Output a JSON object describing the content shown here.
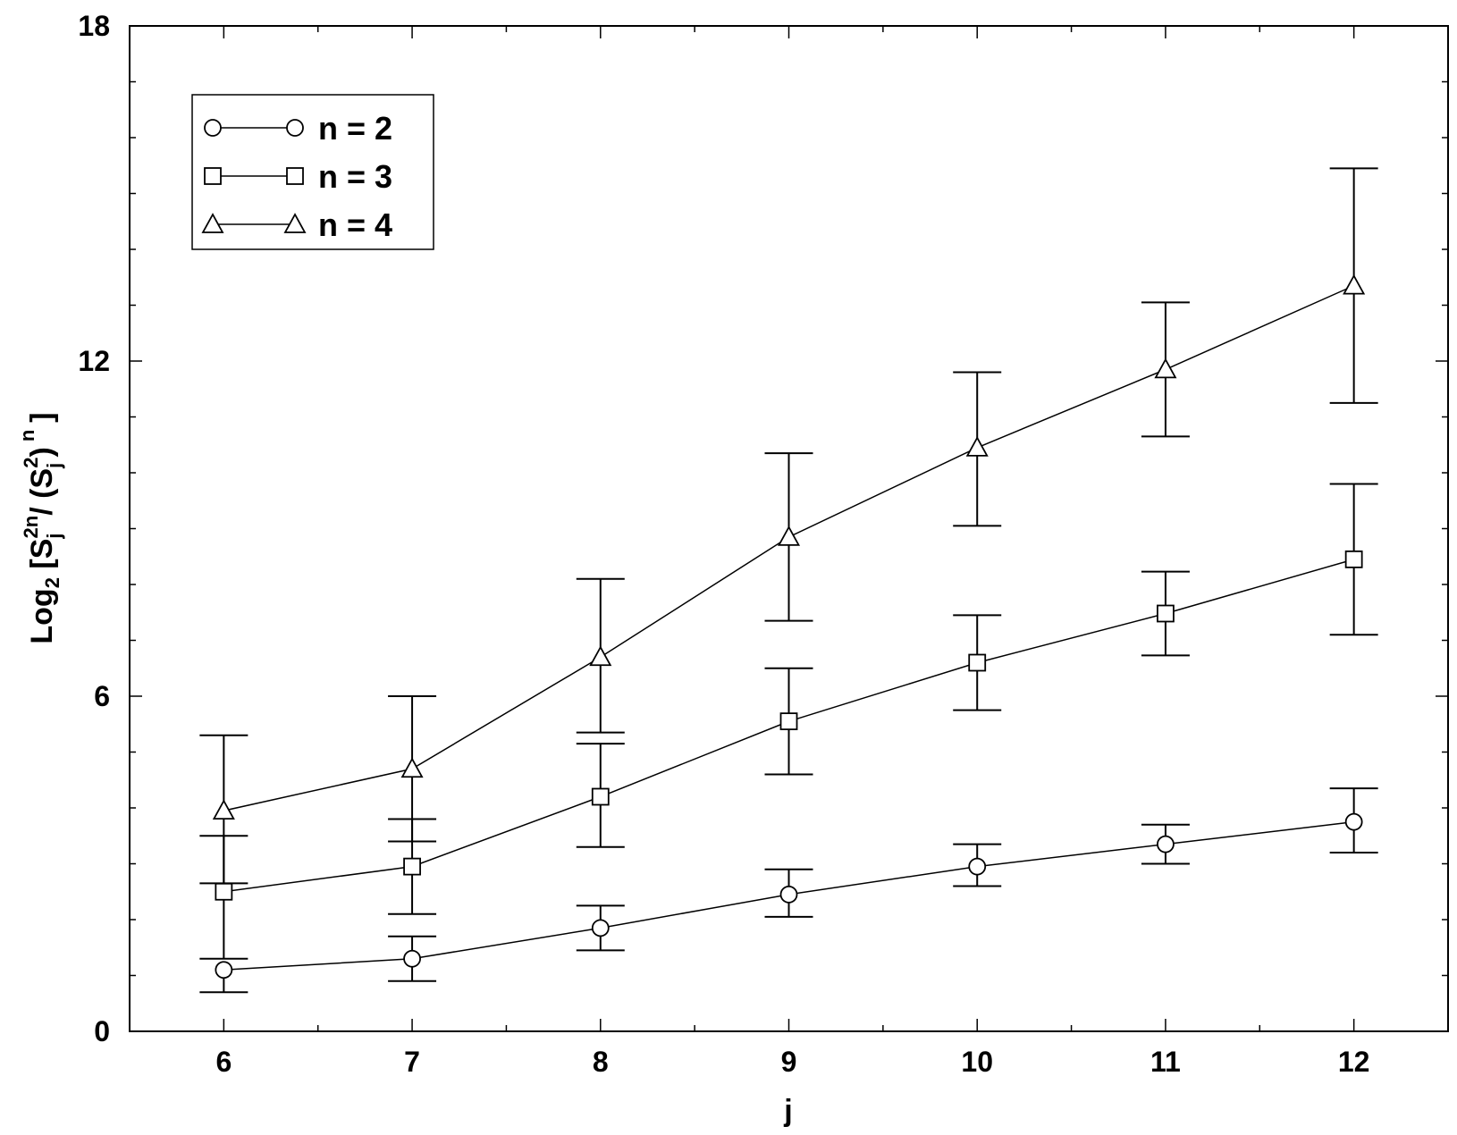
{
  "chart_data": {
    "type": "line",
    "xlabel": "j",
    "ylabel": {
      "prefix": "Log",
      "log_base": "2",
      "open": " [S",
      "sub_j": "j",
      "sup_2n": "2n",
      "slash": "/ (S",
      "sub_j2": "j",
      "sup_2": "2",
      "paren": ")",
      "sup_n": "n",
      "close": "]"
    },
    "xlim": [
      5.5,
      12.5
    ],
    "ylim": [
      0,
      18
    ],
    "x_ticks": [
      6,
      7,
      8,
      9,
      10,
      11,
      12
    ],
    "x_tick_labels": [
      "6",
      "7",
      "8",
      "9",
      "10",
      "11",
      "12"
    ],
    "x_minor_step": 0.5,
    "y_ticks": [
      0,
      6,
      12,
      18
    ],
    "y_tick_labels": [
      "0",
      "6",
      "12",
      "18"
    ],
    "y_minor_step": 1,
    "grid": false,
    "legend_position": "top-left",
    "line_color": "#000000",
    "marker_fill": "#ffffff",
    "x": [
      6,
      7,
      8,
      9,
      10,
      11,
      12
    ],
    "series": [
      {
        "name": "n = 2",
        "marker": "circle",
        "values": [
          1.1,
          1.3,
          1.85,
          2.45,
          2.95,
          3.35,
          3.75
        ],
        "err_low": [
          0.4,
          0.4,
          0.4,
          0.4,
          0.35,
          0.35,
          0.55
        ],
        "err_high": [
          0.0,
          0.4,
          0.4,
          0.45,
          0.4,
          0.35,
          0.6
        ]
      },
      {
        "name": "n = 3",
        "marker": "square",
        "values": [
          2.5,
          2.95,
          4.2,
          5.55,
          6.6,
          7.48,
          8.45
        ],
        "err_low": [
          1.2,
          0.85,
          0.9,
          0.95,
          0.85,
          0.75,
          1.35
        ],
        "err_high": [
          1.0,
          0.85,
          0.95,
          0.95,
          0.85,
          0.75,
          1.35
        ]
      },
      {
        "name": "n = 4",
        "marker": "triangle",
        "values": [
          3.95,
          4.7,
          6.7,
          8.85,
          10.45,
          11.85,
          13.35
        ],
        "err_low": [
          1.3,
          1.3,
          1.35,
          1.5,
          1.4,
          1.2,
          2.1
        ],
        "err_high": [
          1.35,
          1.3,
          1.4,
          1.5,
          1.35,
          1.2,
          2.1
        ]
      }
    ]
  }
}
